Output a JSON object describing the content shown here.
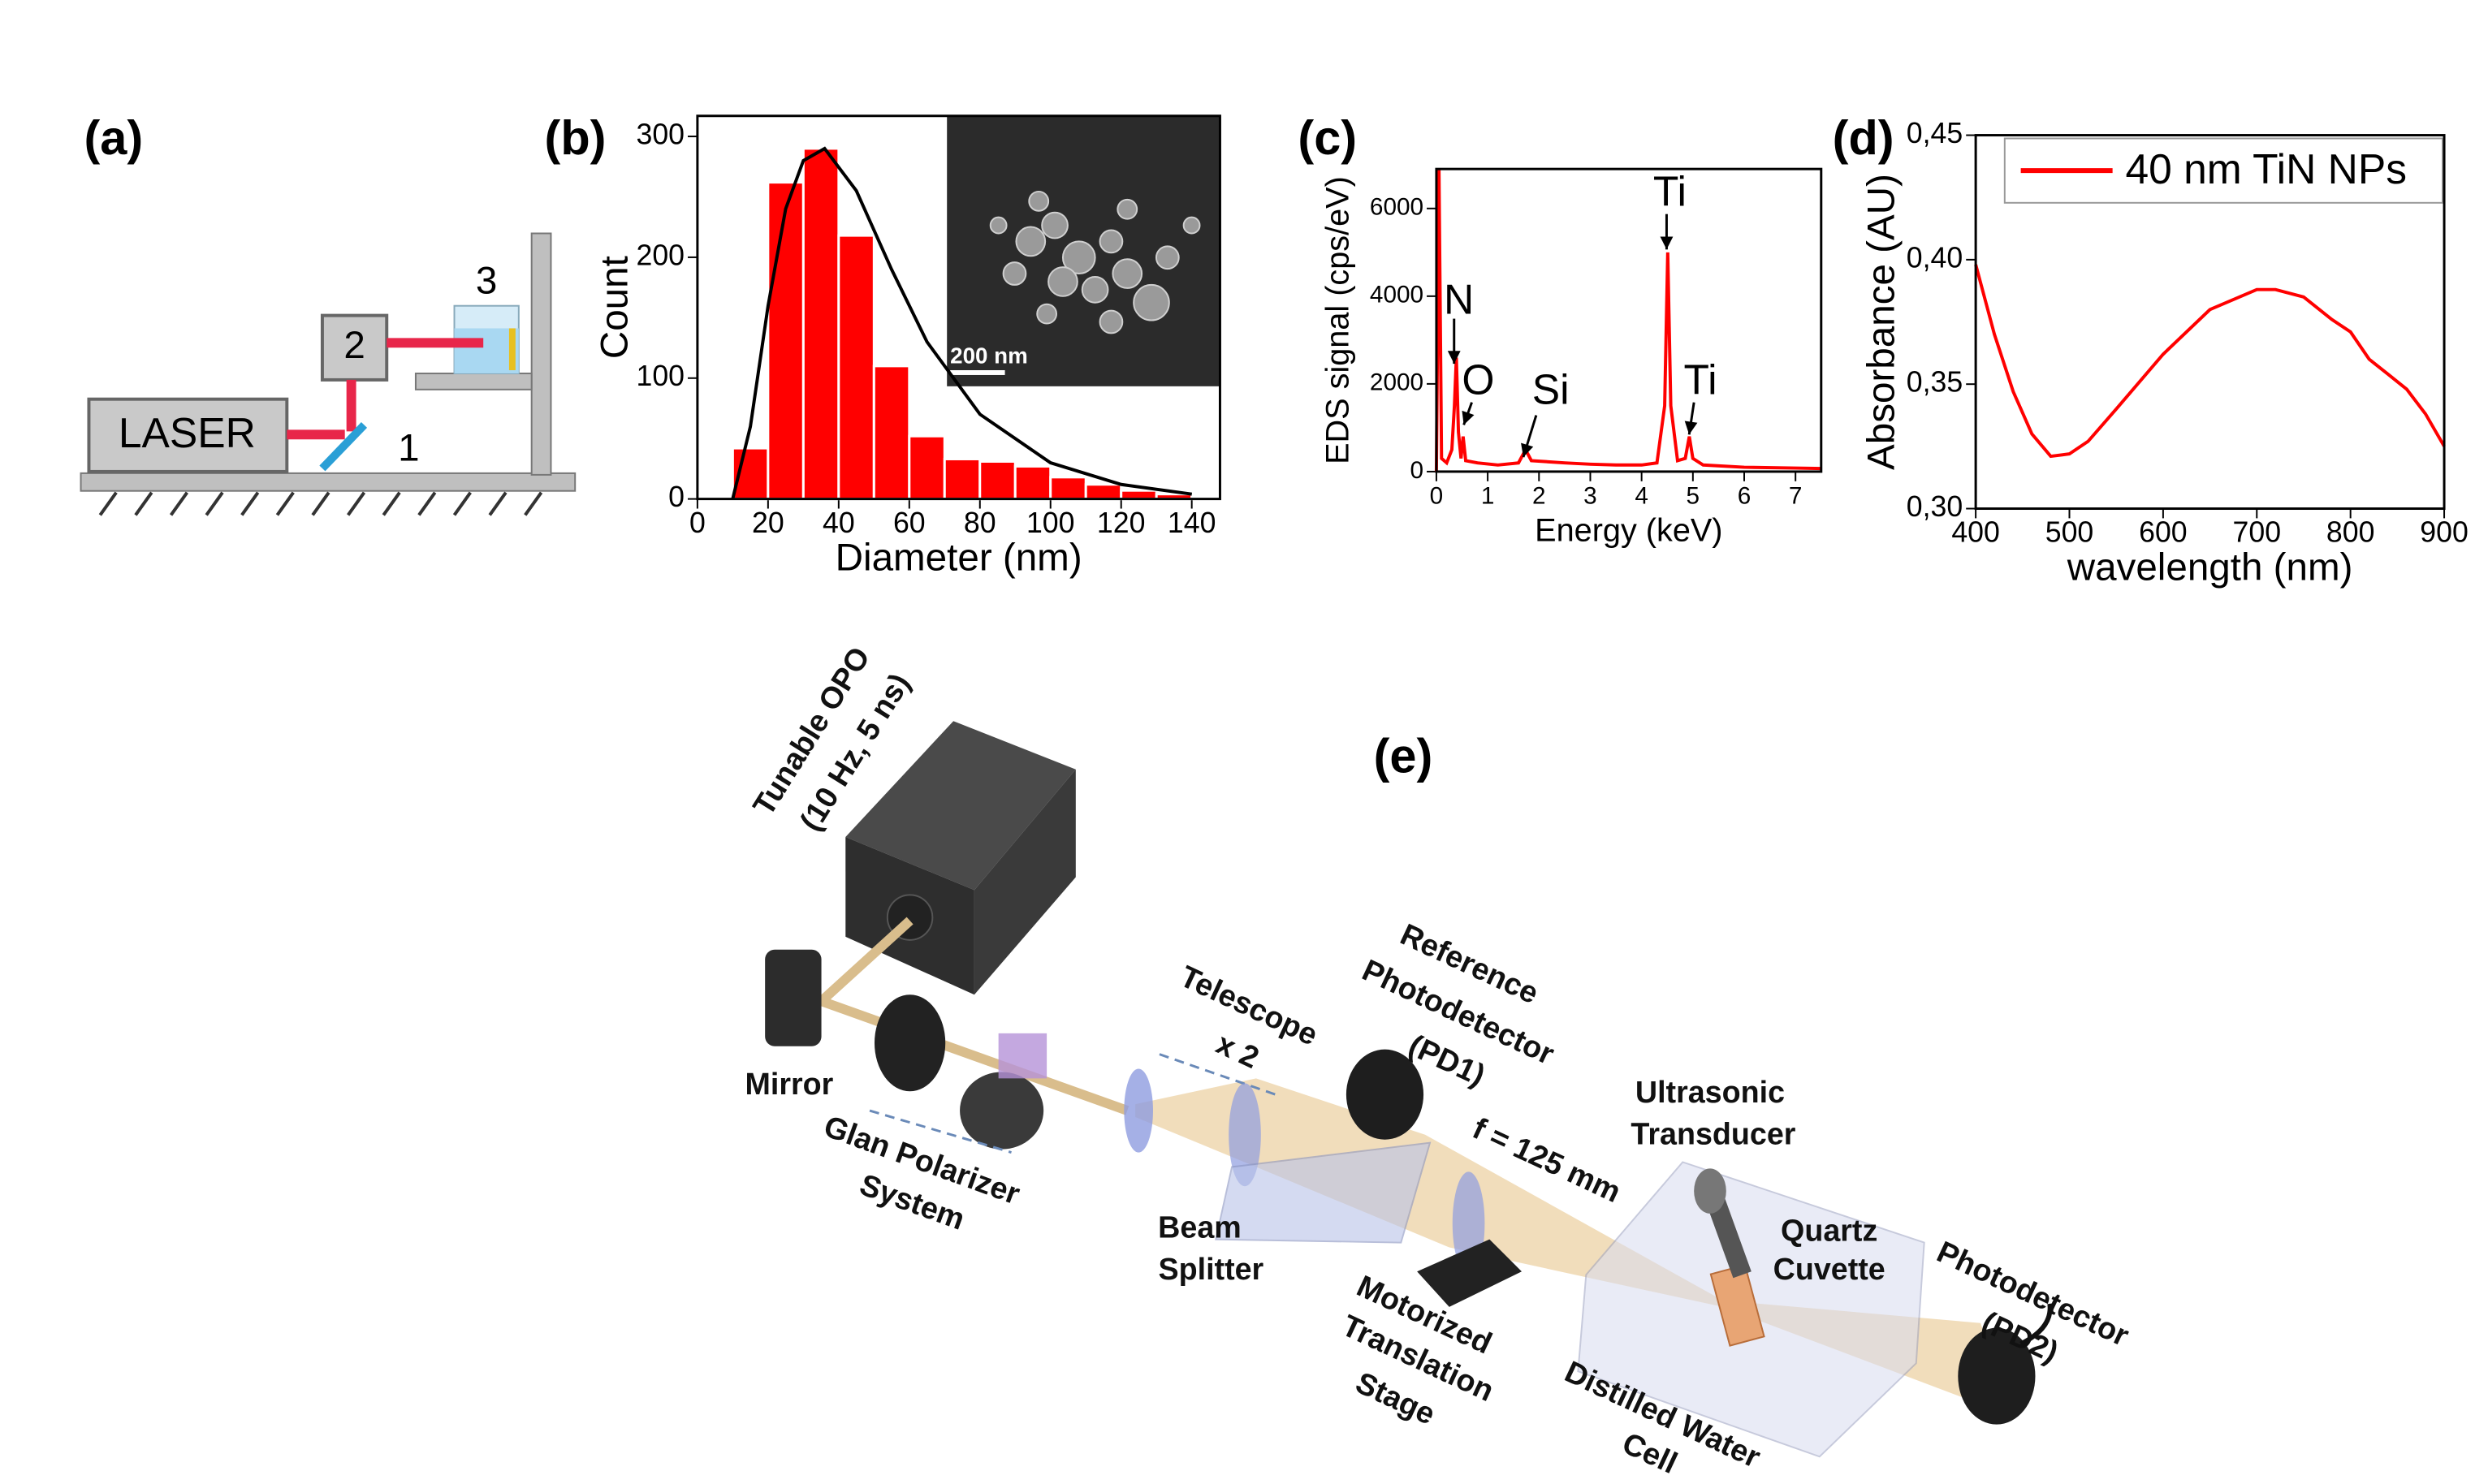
{
  "panel_labels": [
    "(a)",
    "(b)",
    "(c)",
    "(d)",
    "(e)"
  ],
  "setup_a": {
    "laser": "LASER",
    "labels": [
      "1",
      "2",
      "3"
    ]
  },
  "setup_e": {
    "opo": [
      "Tunable OPO",
      "(10 Hz, 5 ns)"
    ],
    "mirror": "Mirror",
    "polarizer": [
      "Glan Polarizer",
      "System"
    ],
    "telescope": [
      "Telescope",
      "x 2"
    ],
    "pd1": [
      "Reference",
      "Photodetector",
      "(PD1)"
    ],
    "focal": "f = 125 mm",
    "transducer": [
      "Ultrasonic",
      "Transducer"
    ],
    "cuvette": [
      "Quartz",
      "Cuvette"
    ],
    "pd2": [
      "Photodetector",
      "(PD2)"
    ],
    "splitter": [
      "Beam",
      "Splitter"
    ],
    "stage": [
      "Motorized",
      "Translation",
      "Stage"
    ],
    "cell": [
      "Distilled Water",
      "Cell"
    ]
  },
  "chart_data": [
    {
      "type": "histogram",
      "xlabel": "Diameter (nm)",
      "ylabel": "Count",
      "inset_scale": "200 nm",
      "bins": [
        10,
        20,
        30,
        40,
        50,
        60,
        70,
        80,
        90,
        100,
        110,
        120,
        130,
        140,
        150
      ],
      "counts": [
        42,
        262,
        290,
        218,
        110,
        52,
        33,
        31,
        27,
        18,
        12,
        7,
        4,
        2
      ],
      "color": "#ff0000",
      "fit": {
        "color": "#000000",
        "x": [
          10,
          15,
          20,
          25,
          30,
          36,
          45,
          55,
          65,
          80,
          100,
          120,
          140
        ],
        "values": [
          0,
          60,
          160,
          240,
          280,
          290,
          255,
          190,
          130,
          70,
          30,
          12,
          4
        ]
      },
      "xlim": [
        0,
        148
      ],
      "ylim": [
        0,
        317
      ],
      "xticks": [
        0,
        20,
        40,
        60,
        80,
        100,
        120,
        140
      ],
      "yticks": [
        0,
        100,
        200,
        300
      ]
    },
    {
      "type": "line",
      "xlabel": "Energy (keV)",
      "ylabel": "EDS signal (cps/eV)",
      "color": "#ff0000",
      "annotations": [
        "N",
        "O",
        "Si",
        "Ti",
        "Ti"
      ],
      "x": [
        0,
        0.05,
        0.1,
        0.2,
        0.3,
        0.35,
        0.39,
        0.43,
        0.48,
        0.52,
        0.57,
        0.8,
        1.2,
        1.6,
        1.74,
        1.85,
        2.5,
        3,
        3.5,
        4,
        4.3,
        4.45,
        4.51,
        4.57,
        4.7,
        4.85,
        4.93,
        5.0,
        5.2,
        6,
        7,
        7.5
      ],
      "values": [
        0,
        6900,
        300,
        200,
        500,
        1500,
        2600,
        900,
        300,
        800,
        250,
        200,
        150,
        200,
        500,
        250,
        200,
        170,
        150,
        150,
        200,
        1500,
        5000,
        1500,
        250,
        300,
        800,
        300,
        150,
        100,
        80,
        70
      ],
      "xlim": [
        0,
        7.5
      ],
      "ylim": [
        0,
        6900
      ],
      "xticks": [
        0,
        1,
        2,
        3,
        4,
        5,
        6,
        7
      ],
      "yticks": [
        0,
        2000,
        4000,
        6000
      ]
    },
    {
      "type": "line",
      "xlabel": "wavelength (nm)",
      "ylabel": "Absorbance (AU)",
      "x": [
        400,
        420,
        440,
        460,
        480,
        500,
        520,
        550,
        600,
        650,
        700,
        720,
        750,
        780,
        800,
        820,
        840,
        860,
        880,
        900
      ],
      "series": [
        {
          "name": "40 nm TiN NPs",
          "color": "#ff0000",
          "values": [
            0.398,
            0.37,
            0.347,
            0.33,
            0.321,
            0.322,
            0.327,
            0.34,
            0.362,
            0.38,
            0.388,
            0.388,
            0.385,
            0.376,
            0.371,
            0.36,
            0.354,
            0.348,
            0.338,
            0.325
          ]
        }
      ],
      "xlim": [
        400,
        900
      ],
      "ylim": [
        0.3,
        0.45
      ],
      "xticks": [
        400,
        500,
        600,
        700,
        800,
        900
      ],
      "yticks": [
        {
          "value": 0.3,
          "label": "0,30"
        },
        {
          "value": 0.35,
          "label": "0,35"
        },
        {
          "value": 0.4,
          "label": "0,40"
        },
        {
          "value": 0.45,
          "label": "0,45"
        }
      ]
    }
  ]
}
